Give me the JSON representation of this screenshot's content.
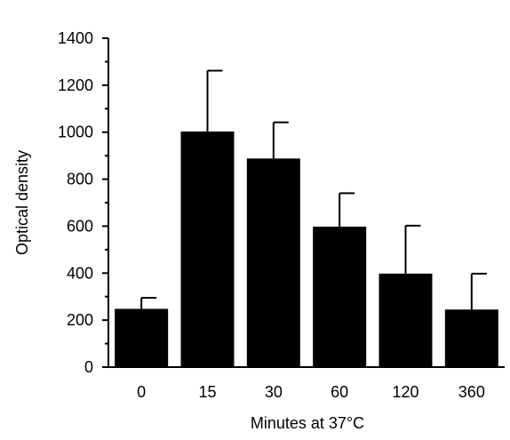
{
  "chart_data": {
    "type": "bar",
    "xlabel": "Minutes at 37°C",
    "ylabel": "Optical density",
    "categories": [
      "0",
      "15",
      "30",
      "60",
      "120",
      "360"
    ],
    "values": [
      248,
      1003,
      888,
      598,
      398,
      245
    ],
    "error_upper": [
      295,
      1262,
      1042,
      740,
      602,
      398
    ],
    "ylim": [
      0,
      1400
    ],
    "yticks": [
      0,
      200,
      400,
      600,
      800,
      1000,
      1200,
      1400
    ],
    "grid": false,
    "bar_color": "#000000"
  }
}
